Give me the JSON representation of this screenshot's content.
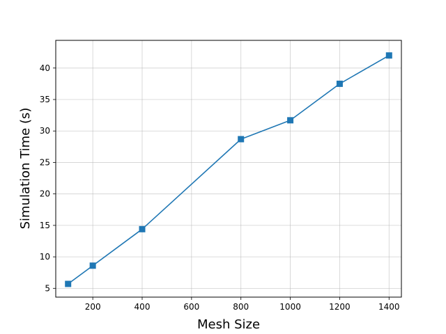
{
  "chart_data": {
    "type": "line",
    "title": "",
    "xlabel": "Mesh Size",
    "ylabel": "Simulation Time (s)",
    "xlim": [
      50,
      1450
    ],
    "ylim": [
      3.6,
      44.4
    ],
    "xticks": [
      200,
      400,
      600,
      800,
      1000,
      1200,
      1400
    ],
    "yticks": [
      5,
      10,
      15,
      20,
      25,
      30,
      35,
      40
    ],
    "grid": true,
    "series": [
      {
        "color": "#1f77b4",
        "marker": "square",
        "points": [
          {
            "x": 100,
            "y": 5.7
          },
          {
            "x": 200,
            "y": 8.6
          },
          {
            "x": 400,
            "y": 14.4
          },
          {
            "x": 800,
            "y": 28.7
          },
          {
            "x": 1000,
            "y": 31.7
          },
          {
            "x": 1200,
            "y": 37.5
          },
          {
            "x": 1400,
            "y": 42.0
          }
        ]
      }
    ]
  }
}
